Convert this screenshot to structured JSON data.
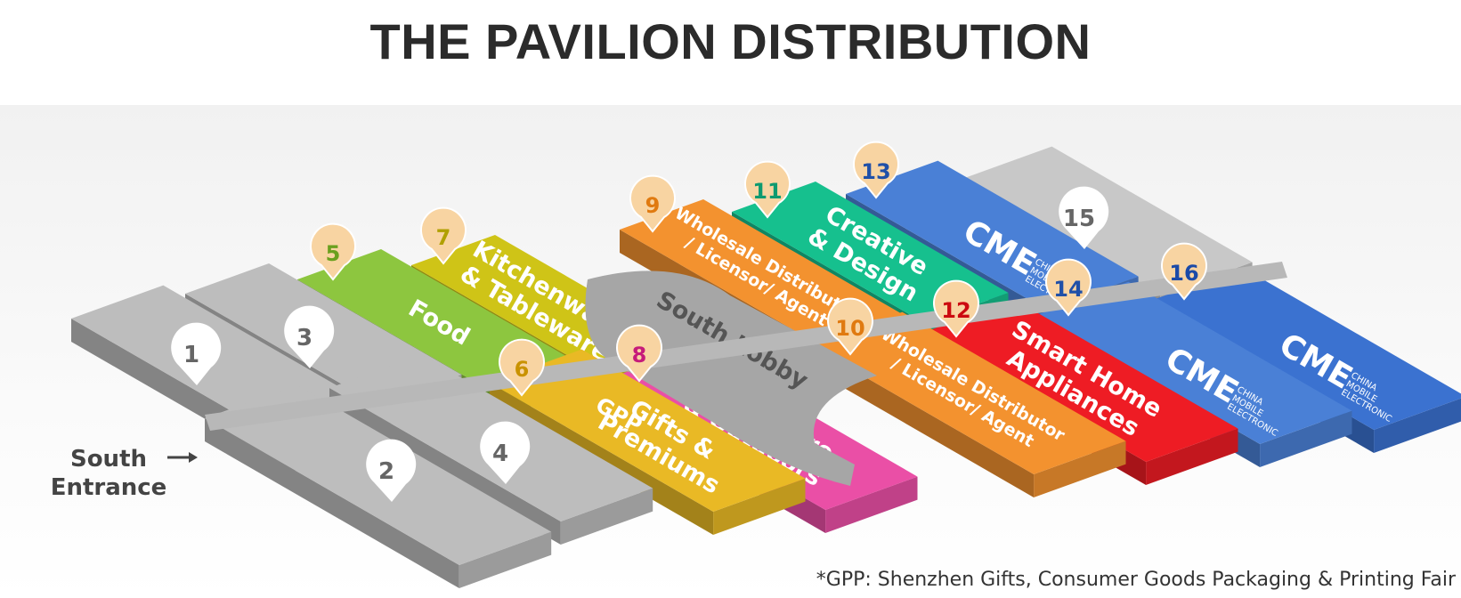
{
  "title": "THE PAVILION DISTRIBUTION",
  "entrance": {
    "line1": "South",
    "line2": "Entrance"
  },
  "lobby_label": "South Lobby",
  "footnote": "*GPP: Shenzhen Gifts, Consumer Goods Packaging & Printing Fair",
  "halls": [
    {
      "number": "1",
      "color": "#bdbdbd",
      "lines": []
    },
    {
      "number": "2",
      "color": "#bdbdbd",
      "lines": []
    },
    {
      "number": "3",
      "color": "#bdbdbd",
      "lines": []
    },
    {
      "number": "4",
      "color": "#bdbdbd",
      "lines": []
    },
    {
      "number": "5",
      "color": "#8dc63f",
      "lines": [
        "Food"
      ]
    },
    {
      "number": "6",
      "color": "#e9b925",
      "lines": [
        "Gifts &",
        "Premiums"
      ],
      "logo": "GPP"
    },
    {
      "number": "7",
      "color": "#cfc417",
      "lines": [
        "Kitchenware",
        "& Tableware"
      ]
    },
    {
      "number": "8",
      "color": "#ea4fa6",
      "lines": [
        "Houseware",
        "& Outdoors"
      ]
    },
    {
      "number": "9",
      "color": "#f3922f",
      "lines": [
        "Wholesale Distributor",
        "/ Licensor/ Agent"
      ]
    },
    {
      "number": "10",
      "color": "#f3922f",
      "lines": [
        "Wholesale Distributor",
        "/ Licensor/ Agent"
      ]
    },
    {
      "number": "11",
      "color": "#16c08e",
      "lines": [
        "Creative",
        "& Design"
      ]
    },
    {
      "number": "12",
      "color": "#ee1c24",
      "lines": [
        "Smart Home",
        "Appliances"
      ]
    },
    {
      "number": "13",
      "color": "#4a80d6",
      "lines": [],
      "logo": "CME"
    },
    {
      "number": "14",
      "color": "#4a80d6",
      "lines": [],
      "logo": "CME"
    },
    {
      "number": "15",
      "color": "#c8c8c8",
      "lines": []
    },
    {
      "number": "16",
      "color": "#3b72d0",
      "lines": [],
      "logo": "CME"
    }
  ],
  "cme_logo": {
    "mark": "CME",
    "text1": "CHINA",
    "text2": "MOBILE",
    "text3": "ELECTRONIC"
  },
  "gpp_logo": {
    "mark": "GPP"
  },
  "icons": [
    "pin-marker-icon",
    "arrow-right-icon"
  ]
}
